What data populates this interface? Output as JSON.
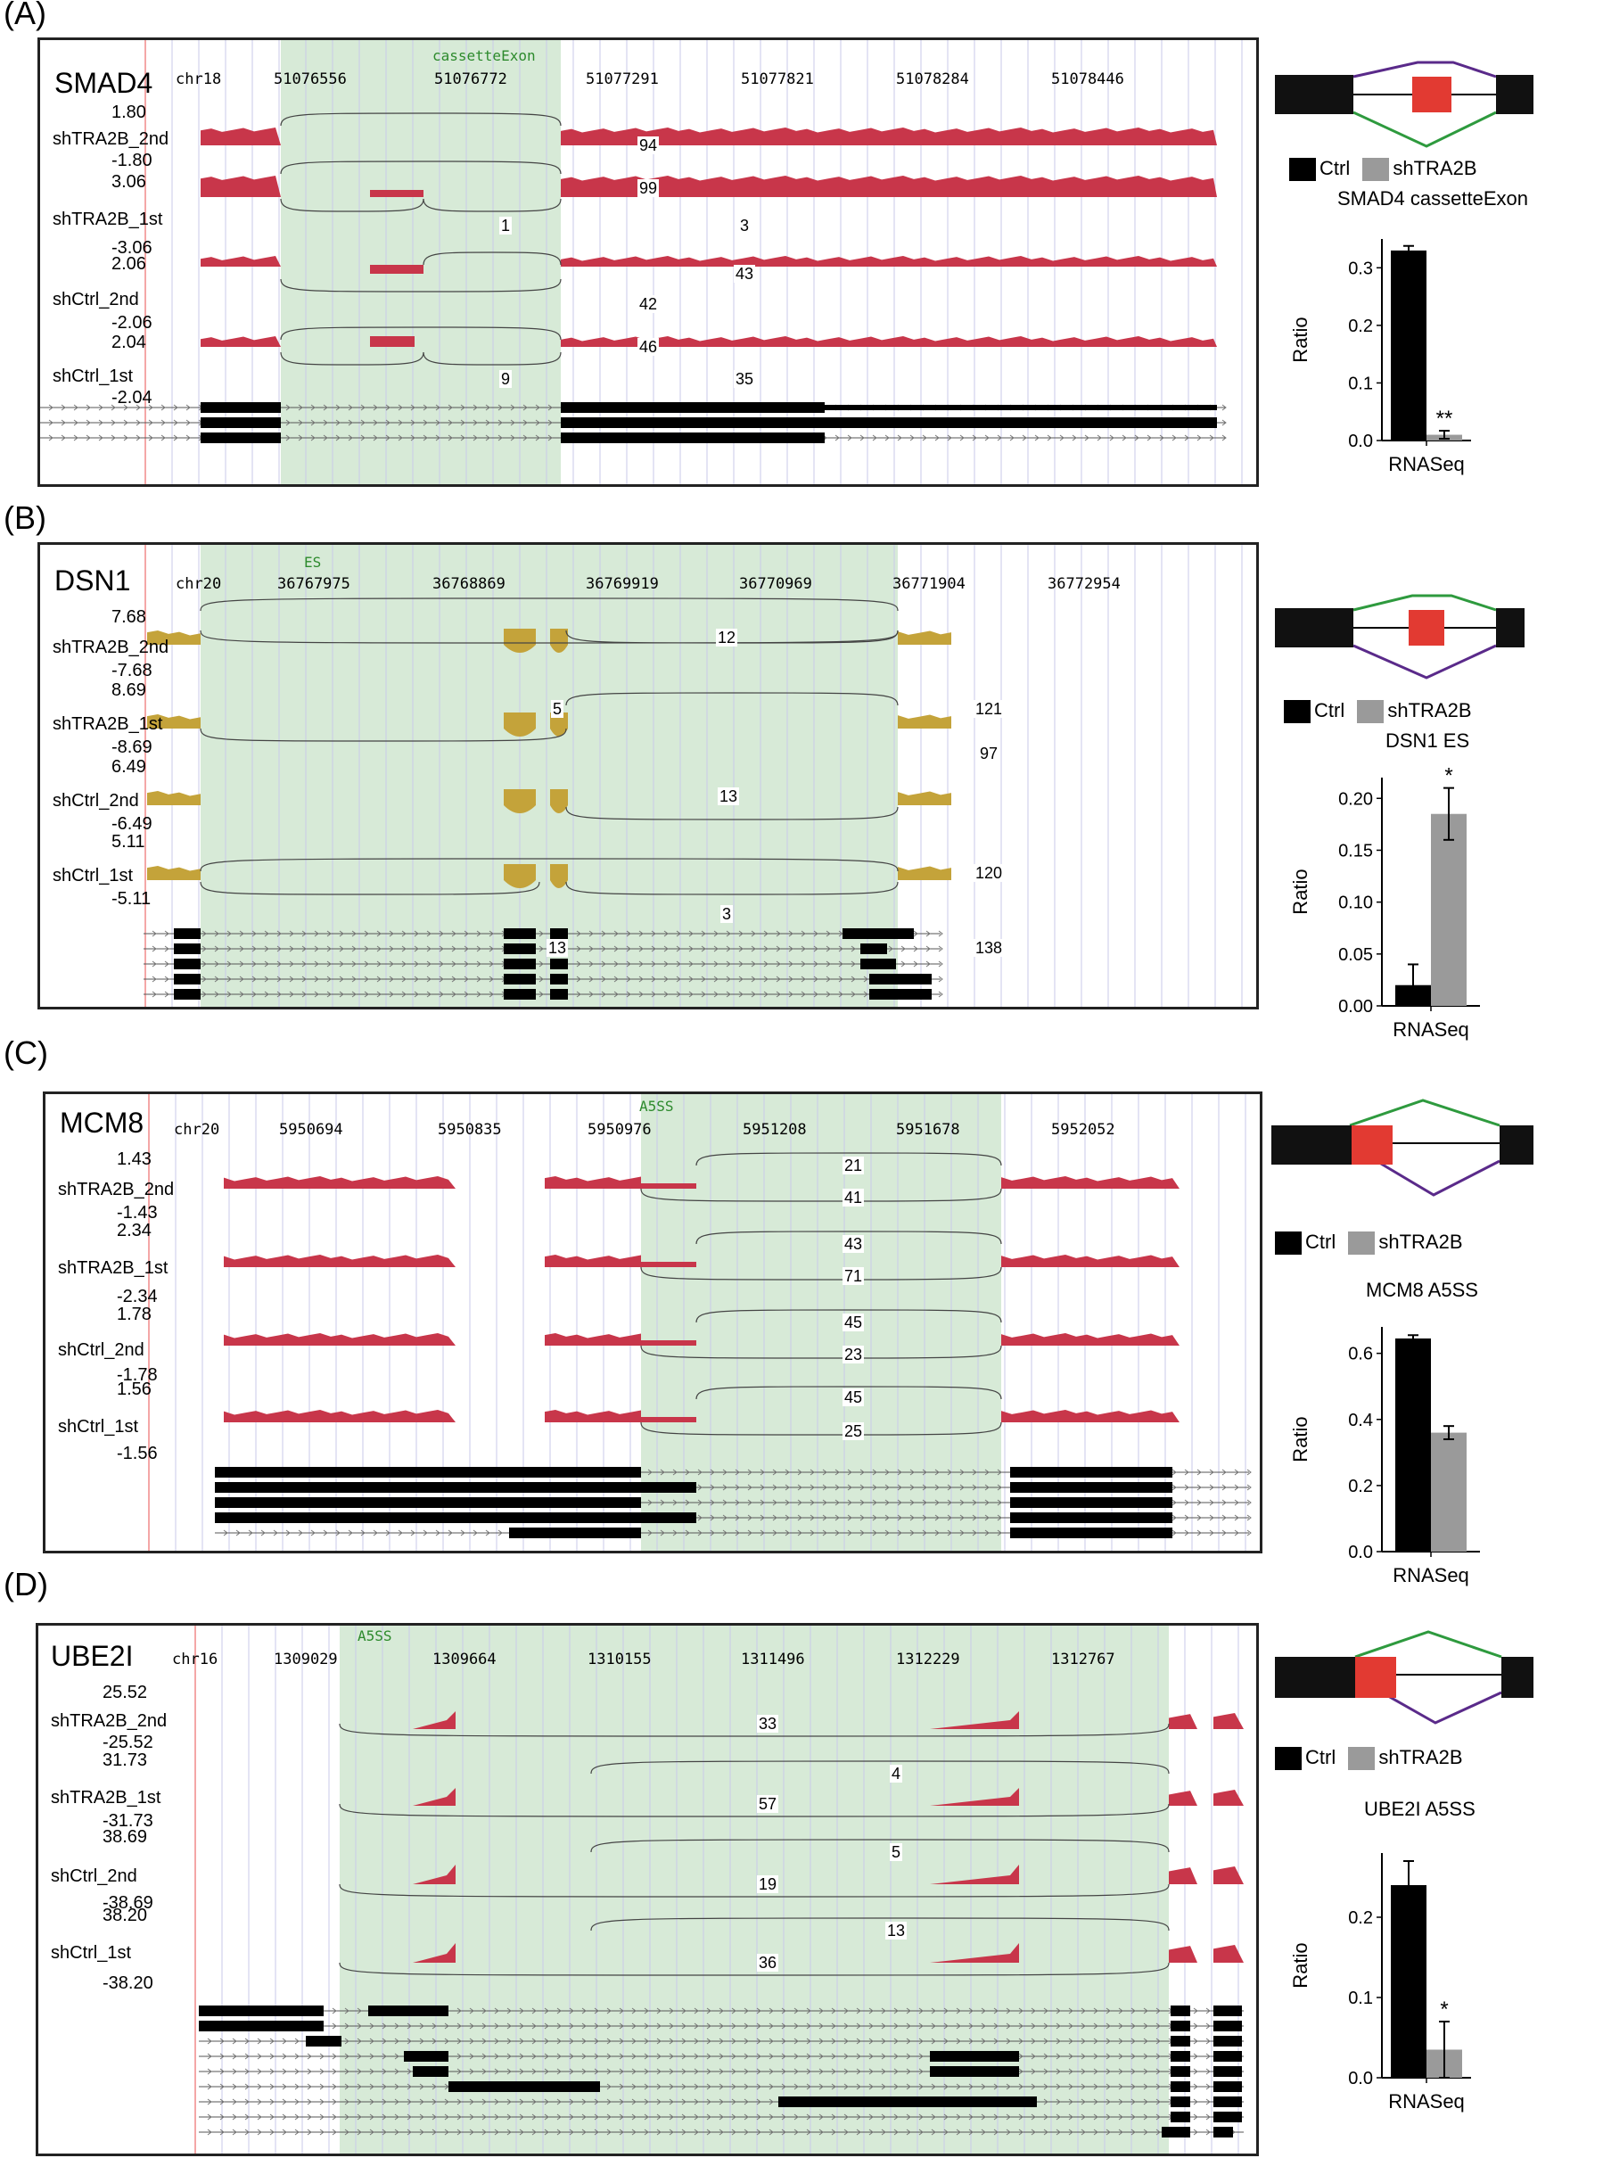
{
  "panels": [
    {
      "label": "(A)",
      "gene": "SMAD4",
      "chr": "chr18",
      "coords": [
        "51076556",
        "51076772",
        "51077291",
        "51077821",
        "51078284",
        "51078446"
      ],
      "event": "cassetteExon",
      "tracks": [
        {
          "name": "shTRA2B_2nd",
          "max": "1.80",
          "min": "-1.80",
          "junctions": [
            "94"
          ]
        },
        {
          "name": "shTRA2B_1st",
          "max": "3.06",
          "min": "-3.06",
          "junctions": [
            "99",
            "1",
            "3"
          ]
        },
        {
          "name": "shCtrl_2nd",
          "max": "2.06",
          "min": "-2.06",
          "junctions": [
            "43",
            "42"
          ]
        },
        {
          "name": "shCtrl_1st",
          "max": "2.04",
          "min": "-2.04",
          "junctions": [
            "46",
            "9",
            "35"
          ]
        }
      ],
      "chart_data": {
        "type": "bar",
        "title": "SMAD4 cassetteExon",
        "xlabel": "RNASeq",
        "ylabel": "Ratio",
        "categories": [
          "RNASeq"
        ],
        "series": [
          {
            "name": "Ctrl",
            "values": [
              0.33
            ],
            "error": [
              0.008
            ]
          },
          {
            "name": "shTRA2B",
            "values": [
              0.01
            ],
            "error": [
              0.007
            ]
          }
        ],
        "ylim": [
          0,
          0.35
        ],
        "yticks": [
          "0.0",
          "0.1",
          "0.2",
          "0.3"
        ],
        "significance": "**",
        "legend": [
          "Ctrl",
          "shTRA2B"
        ]
      }
    },
    {
      "label": "(B)",
      "gene": "DSN1",
      "chr": "chr20",
      "coords": [
        "36767975",
        "36768869",
        "36769919",
        "36770969",
        "36771904",
        "36772954"
      ],
      "event": "ES",
      "tracks": [
        {
          "name": "shTRA2B_2nd",
          "max": "7.68",
          "min": "-7.68",
          "junctions": [
            "12",
            "5",
            "121"
          ]
        },
        {
          "name": "shTRA2B_1st",
          "max": "8.69",
          "min": "-8.69",
          "junctions": [
            "97",
            "13"
          ]
        },
        {
          "name": "shCtrl_2nd",
          "max": "6.49",
          "min": "-6.49",
          "junctions": [
            "120"
          ]
        },
        {
          "name": "shCtrl_1st",
          "max": "5.11",
          "min": "-5.11",
          "junctions": [
            "3",
            "13",
            "138"
          ]
        }
      ],
      "chart_data": {
        "type": "bar",
        "title": "DSN1 ES",
        "xlabel": "RNASeq",
        "ylabel": "Ratio",
        "categories": [
          "RNASeq"
        ],
        "series": [
          {
            "name": "Ctrl",
            "values": [
              0.02
            ],
            "error": [
              0.02
            ]
          },
          {
            "name": "shTRA2B",
            "values": [
              0.185
            ],
            "error": [
              0.025
            ]
          }
        ],
        "ylim": [
          0,
          0.22
        ],
        "yticks": [
          "0.00",
          "0.05",
          "0.10",
          "0.15",
          "0.20"
        ],
        "significance": "*",
        "legend": [
          "Ctrl",
          "shTRA2B"
        ]
      }
    },
    {
      "label": "(C)",
      "gene": "MCM8",
      "chr": "chr20",
      "coords": [
        "5950694",
        "5950835",
        "5950976",
        "5951208",
        "5951678",
        "5952052"
      ],
      "event": "A5SS",
      "tracks": [
        {
          "name": "shTRA2B_2nd",
          "max": "1.43",
          "min": "-1.43",
          "junctions": [
            "21",
            "41"
          ]
        },
        {
          "name": "shTRA2B_1st",
          "max": "2.34",
          "min": "-2.34",
          "junctions": [
            "43",
            "71"
          ]
        },
        {
          "name": "shCtrl_2nd",
          "max": "1.78",
          "min": "-1.78",
          "junctions": [
            "45",
            "23"
          ]
        },
        {
          "name": "shCtrl_1st",
          "max": "1.56",
          "min": "-1.56",
          "junctions": [
            "45",
            "25"
          ]
        }
      ],
      "chart_data": {
        "type": "bar",
        "title": "MCM8 A5SS",
        "xlabel": "RNASeq",
        "ylabel": "Ratio",
        "categories": [
          "RNASeq"
        ],
        "series": [
          {
            "name": "Ctrl",
            "values": [
              0.645
            ],
            "error": [
              0.01
            ]
          },
          {
            "name": "shTRA2B",
            "values": [
              0.36
            ],
            "error": [
              0.02
            ]
          }
        ],
        "ylim": [
          0,
          0.68
        ],
        "yticks": [
          "0.0",
          "0.2",
          "0.4",
          "0.6"
        ],
        "significance": "",
        "legend": [
          "Ctrl",
          "shTRA2B"
        ]
      }
    },
    {
      "label": "(D)",
      "gene": "UBE2I",
      "chr": "chr16",
      "coords": [
        "1309029",
        "1309664",
        "1310155",
        "1311496",
        "1312229",
        "1312767"
      ],
      "event": "A5SS",
      "tracks": [
        {
          "name": "shTRA2B_2nd",
          "max": "25.52",
          "min": "-25.52",
          "junctions": [
            "33"
          ]
        },
        {
          "name": "shTRA2B_1st",
          "max": "31.73",
          "min": "-31.73",
          "junctions": [
            "4",
            "57"
          ]
        },
        {
          "name": "shCtrl_2nd",
          "max": "38.69",
          "min": "-38.69",
          "junctions": [
            "5",
            "19"
          ]
        },
        {
          "name": "shCtrl_1st",
          "max": "38.20",
          "min": "-38.20",
          "junctions": [
            "13",
            "36"
          ]
        }
      ],
      "chart_data": {
        "type": "bar",
        "title": "UBE2I A5SS",
        "xlabel": "RNASeq",
        "ylabel": "Ratio",
        "categories": [
          "RNASeq"
        ],
        "series": [
          {
            "name": "Ctrl",
            "values": [
              0.24
            ],
            "error": [
              0.03
            ]
          },
          {
            "name": "shTRA2B",
            "values": [
              0.035
            ],
            "error": [
              0.035
            ]
          }
        ],
        "ylim": [
          0,
          0.28
        ],
        "yticks": [
          "0.0",
          "0.1",
          "0.2"
        ],
        "significance": "*",
        "legend": [
          "Ctrl",
          "shTRA2B"
        ]
      }
    }
  ],
  "colors": {
    "coverage_red": "#c8364a",
    "coverage_gold": "#c4a33a",
    "event_shade": "#d7ead7",
    "exon_red": "#e23a32",
    "ctrl": "#000000",
    "shtra2b": "#9a9a9a",
    "inclusion_line": "#2e9a3e",
    "skip_line": "#5a2a8a"
  }
}
